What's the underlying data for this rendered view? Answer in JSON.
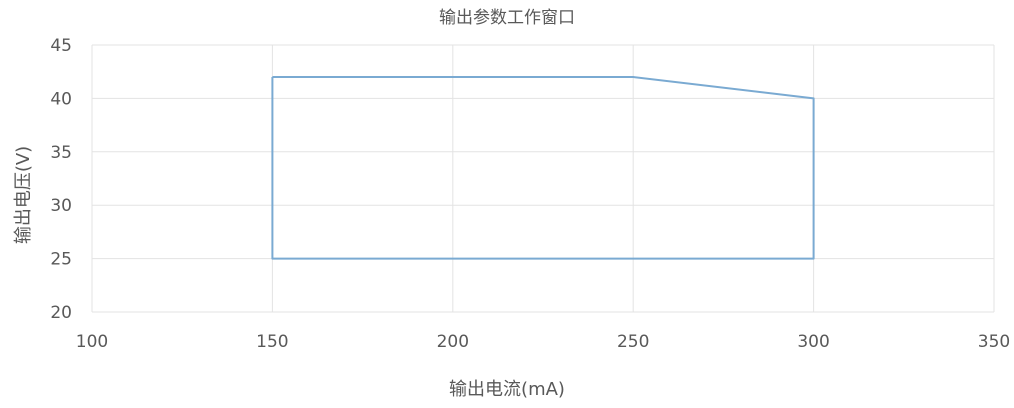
{
  "chart_data": {
    "type": "line",
    "title": "输出参数工作窗口",
    "xlabel": "输出电流(mA)",
    "ylabel": "输出电压(V)",
    "xlim": [
      100,
      350
    ],
    "ylim": [
      20,
      45
    ],
    "xticks": [
      100,
      150,
      200,
      250,
      300,
      350
    ],
    "yticks": [
      20,
      25,
      30,
      35,
      40,
      45
    ],
    "grid": true,
    "series": [
      {
        "color": "#7aaad2",
        "points": [
          [
            150,
            42
          ],
          [
            250,
            42
          ],
          [
            300,
            40
          ],
          [
            300,
            25
          ],
          [
            150,
            25
          ],
          [
            150,
            42
          ]
        ]
      }
    ]
  }
}
